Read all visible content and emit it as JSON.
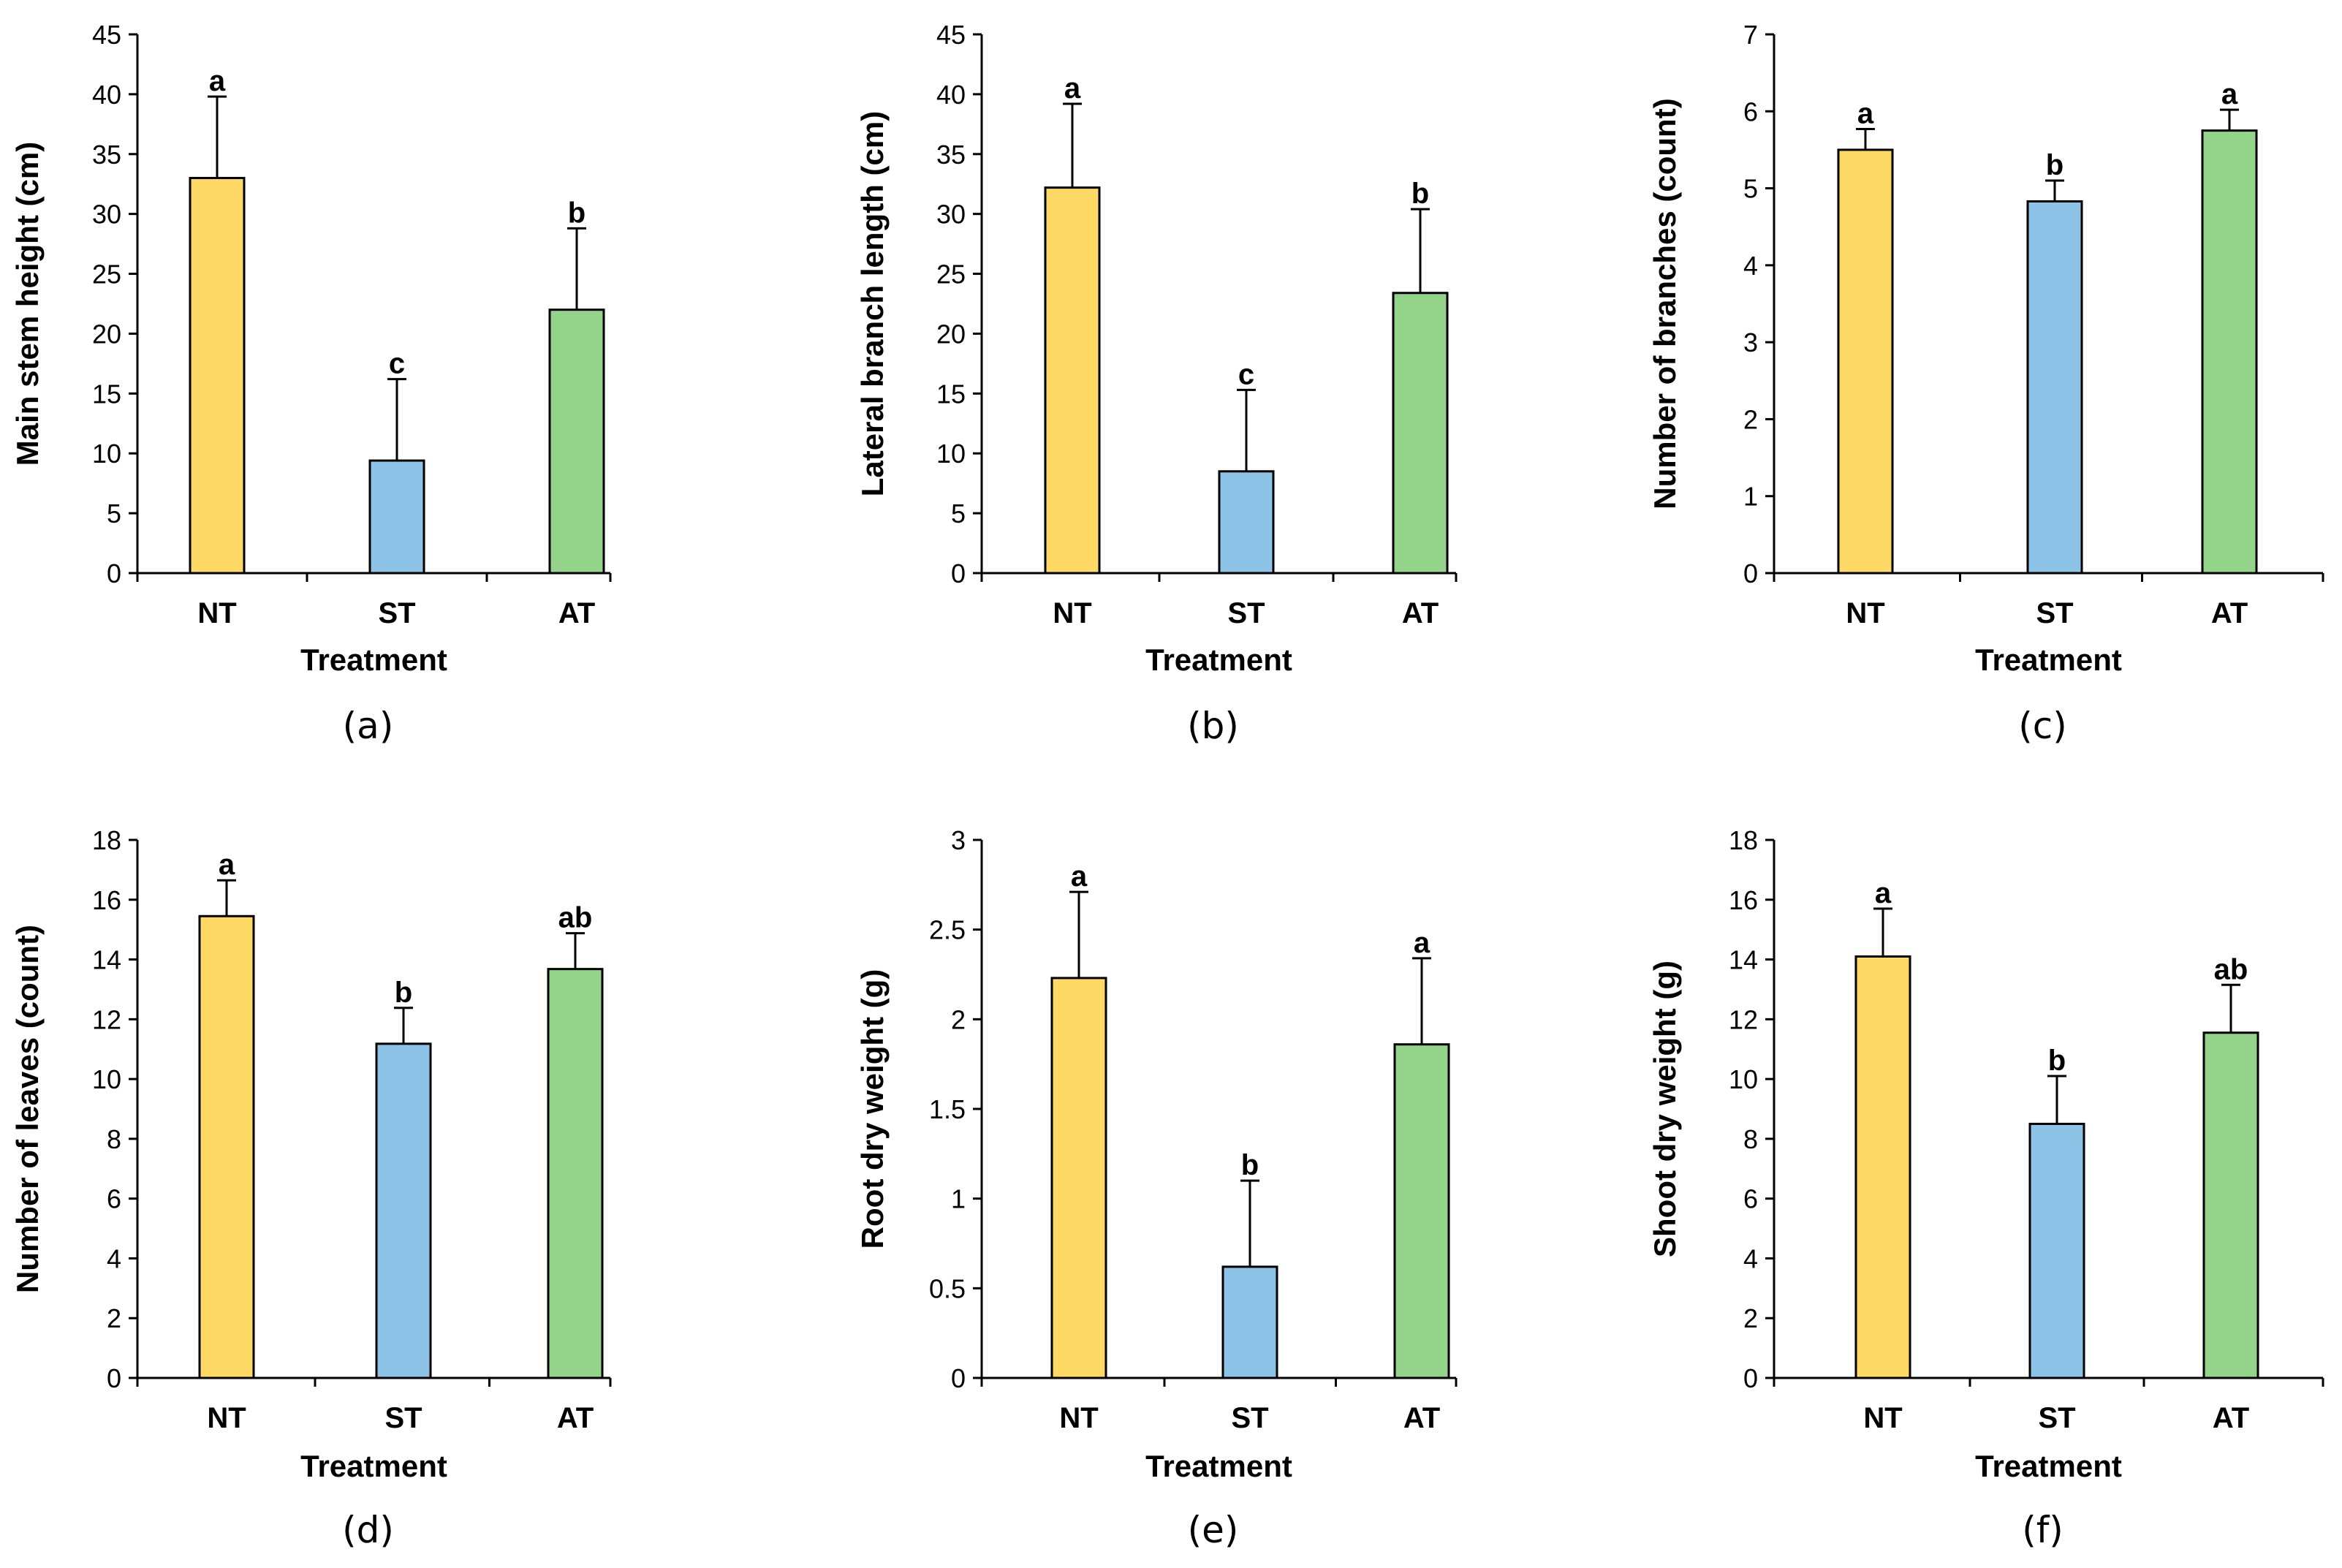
{
  "colors": {
    "NT": "#FFD966",
    "ST": "#8EC3E8",
    "AT": "#93D38A",
    "outline": "#000000"
  },
  "chart_data": [
    {
      "type": "bar",
      "panel_label": "(a)",
      "categories": [
        "NT",
        "ST",
        "AT"
      ],
      "values": [
        33.0,
        9.4,
        22.0
      ],
      "errors": [
        6.8,
        6.8,
        6.8
      ],
      "significance": [
        "a",
        "c",
        "b"
      ],
      "xlabel": "Treatment",
      "ylabel": "Main stem height (cm)",
      "ylim": [
        0,
        45
      ],
      "yticks": [
        0,
        5,
        10,
        15,
        20,
        25,
        30,
        35,
        40,
        45
      ]
    },
    {
      "type": "bar",
      "panel_label": "(b)",
      "categories": [
        "NT",
        "ST",
        "AT"
      ],
      "values": [
        32.2,
        8.5,
        23.4
      ],
      "errors": [
        7.0,
        6.8,
        7.0
      ],
      "significance": [
        "a",
        "c",
        "b"
      ],
      "xlabel": "Treatment",
      "ylabel": "Lateral branch length (cm)",
      "ylim": [
        0,
        45
      ],
      "yticks": [
        0,
        5,
        10,
        15,
        20,
        25,
        30,
        35,
        40,
        45
      ]
    },
    {
      "type": "bar",
      "panel_label": "(c)",
      "categories": [
        "NT",
        "ST",
        "AT"
      ],
      "values": [
        5.5,
        4.83,
        5.75
      ],
      "errors": [
        0.27,
        0.27,
        0.27
      ],
      "significance": [
        "a",
        "b",
        "a"
      ],
      "xlabel": "Treatment",
      "ylabel": "Number of branches (count)",
      "ylim": [
        0,
        7
      ],
      "yticks": [
        0,
        1,
        2,
        3,
        4,
        5,
        6,
        7
      ]
    },
    {
      "type": "bar",
      "panel_label": "(d)",
      "categories": [
        "NT",
        "ST",
        "AT"
      ],
      "values": [
        15.45,
        11.18,
        13.68
      ],
      "errors": [
        1.2,
        1.2,
        1.2
      ],
      "significance": [
        "a",
        "b",
        "ab"
      ],
      "xlabel": "Treatment",
      "ylabel": "Number of leaves (count)",
      "ylim": [
        0,
        18
      ],
      "yticks": [
        0,
        2,
        4,
        6,
        8,
        10,
        12,
        14,
        16,
        18
      ]
    },
    {
      "type": "bar",
      "panel_label": "(e)",
      "categories": [
        "NT",
        "ST",
        "AT"
      ],
      "values": [
        2.23,
        0.62,
        1.86
      ],
      "errors": [
        0.48,
        0.48,
        0.48
      ],
      "significance": [
        "a",
        "b",
        "a"
      ],
      "xlabel": "Treatment",
      "ylabel": "Root dry weight (g)",
      "ylim": [
        0,
        3
      ],
      "yticks": [
        0,
        0.5,
        1,
        1.5,
        2,
        2.5,
        3
      ]
    },
    {
      "type": "bar",
      "panel_label": "(f)",
      "categories": [
        "NT",
        "ST",
        "AT"
      ],
      "values": [
        14.1,
        8.5,
        11.55
      ],
      "errors": [
        1.6,
        1.6,
        1.6
      ],
      "significance": [
        "a",
        "b",
        "ab"
      ],
      "xlabel": "Treatment",
      "ylabel": "Shoot dry weight (g)",
      "ylim": [
        0,
        18
      ],
      "yticks": [
        0,
        2,
        4,
        6,
        8,
        10,
        12,
        14,
        16,
        18
      ]
    }
  ]
}
